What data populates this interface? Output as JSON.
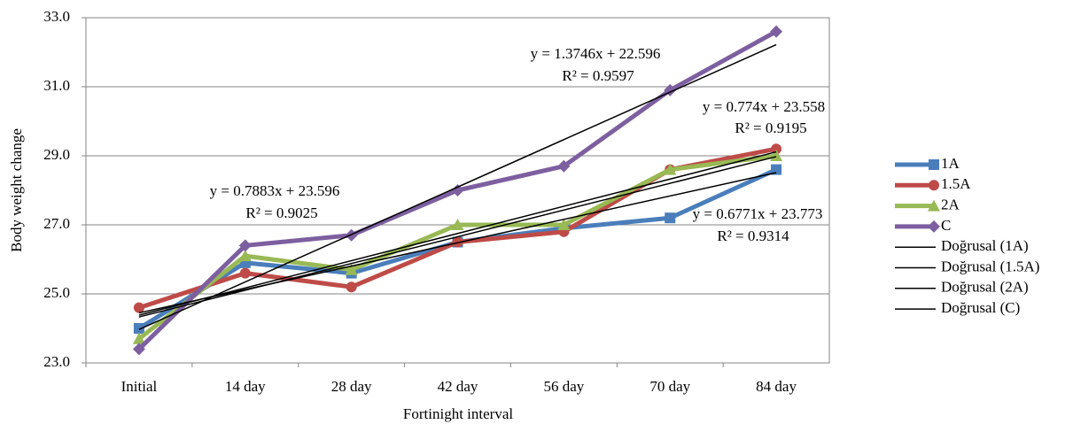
{
  "chart_data": {
    "type": "line",
    "x_label": "Fortinight interval",
    "y_label": "Body weight change",
    "categories": [
      "Initial",
      "14 day",
      "28 day",
      "42 day",
      "56 day",
      "70 day",
      "84 day"
    ],
    "ylim": [
      23,
      33
    ],
    "yticks": [
      {
        "value": 23,
        "label": "23.0"
      },
      {
        "value": 25,
        "label": "25.0"
      },
      {
        "value": 27,
        "label": "27.0"
      },
      {
        "value": 29,
        "label": "29.0"
      },
      {
        "value": 31,
        "label": "31.0"
      },
      {
        "value": 33,
        "label": "33.0"
      }
    ],
    "grid": true,
    "legend": "right",
    "series": [
      {
        "name": "1A",
        "color": "#4a7ebb",
        "marker": "square",
        "values": [
          24.0,
          25.9,
          25.6,
          26.5,
          26.9,
          27.2,
          28.6
        ]
      },
      {
        "name": "1.5A",
        "color": "#be4b48",
        "marker": "circle",
        "values": [
          24.6,
          25.6,
          25.2,
          26.5,
          26.8,
          28.6,
          29.2
        ]
      },
      {
        "name": "2A",
        "color": "#98b954",
        "marker": "triangle",
        "values": [
          23.7,
          26.1,
          25.7,
          27.0,
          27.0,
          28.6,
          29.0
        ]
      },
      {
        "name": "C",
        "color": "#7d5fa0",
        "marker": "diamond",
        "values": [
          23.4,
          26.4,
          26.7,
          28.0,
          28.7,
          30.9,
          32.6
        ]
      }
    ],
    "trendlines": [
      {
        "name": "Doğrusal (1A)",
        "color": "#000000",
        "slope": 0.6771,
        "intercept": 23.773,
        "equation": "y = 0.6771x + 23.773",
        "r2": "R² = 0.9314"
      },
      {
        "name": "Doğrusal (1.5A)",
        "color": "#000000",
        "slope": 0.774,
        "intercept": 23.558,
        "equation": "y = 0.774x + 23.558",
        "r2": "R² = 0.9195"
      },
      {
        "name": "Doğrusal (2A)",
        "color": "#000000",
        "slope": 0.7883,
        "intercept": 23.596,
        "equation": "y = 0.7883x + 23.596",
        "r2": "R² = 0.9025"
      },
      {
        "name": "Doğrusal (C)",
        "color": "#000000",
        "slope": 1.3746,
        "intercept": 22.596,
        "equation": "y = 1.3746x + 22.596",
        "r2": "R² = 0.9597"
      }
    ]
  }
}
